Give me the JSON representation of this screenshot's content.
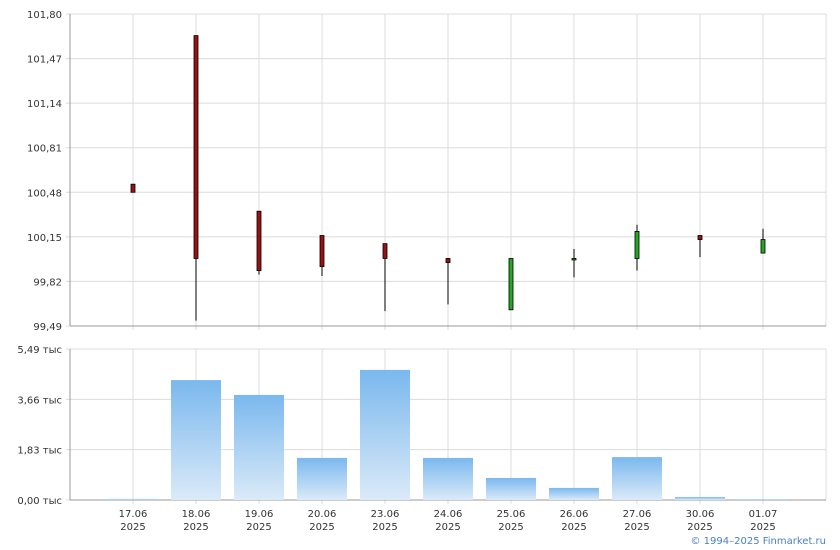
{
  "chart_data": [
    {
      "type": "candlestick",
      "open": [
        100.54,
        101.64,
        100.34,
        100.16,
        100.1,
        99.99,
        99.61,
        99.99,
        99.99,
        100.16,
        100.03
      ],
      "high": [
        100.54,
        101.64,
        100.34,
        100.16,
        100.1,
        99.99,
        99.99,
        100.06,
        100.24,
        100.16,
        100.21
      ],
      "low": [
        100.48,
        99.53,
        99.87,
        99.86,
        99.6,
        99.65,
        99.61,
        99.85,
        99.9,
        100.0,
        100.03
      ],
      "close": [
        100.48,
        99.99,
        99.9,
        99.93,
        99.99,
        99.96,
        99.99,
        99.99,
        100.19,
        100.13,
        100.13
      ],
      "up_color": "#22aa22",
      "down_color": "#9b1010",
      "ylim": [
        99.49,
        101.8
      ],
      "yticks": [
        {
          "value": 99.49,
          "label": "99,49"
        },
        {
          "value": 99.82,
          "label": "99,82"
        },
        {
          "value": 100.15,
          "label": "100,15"
        },
        {
          "value": 100.48,
          "label": "100,48"
        },
        {
          "value": 100.81,
          "label": "100,81"
        },
        {
          "value": 101.14,
          "label": "101,14"
        },
        {
          "value": 101.47,
          "label": "101,47"
        },
        {
          "value": 101.8,
          "label": "101,80"
        }
      ],
      "grid": true
    },
    {
      "type": "bar",
      "categories": [
        "17.06\n2025",
        "18.06\n2025",
        "19.06\n2025",
        "20.06\n2025",
        "23.06\n2025",
        "24.06\n2025",
        "25.06\n2025",
        "26.06\n2025",
        "27.06\n2025",
        "30.06\n2025",
        "01.07\n2025"
      ],
      "values": [
        40,
        4360,
        3820,
        1530,
        4730,
        1530,
        800,
        440,
        1560,
        110,
        30
      ],
      "color": "#7ab8ee",
      "ylim": [
        0,
        5490
      ],
      "yticks": [
        {
          "value": 0,
          "label": "0,00 тыс"
        },
        {
          "value": 1830,
          "label": "1,83 тыс"
        },
        {
          "value": 3660,
          "label": "3,66 тыс"
        },
        {
          "value": 5490,
          "label": "5,49 тыс"
        }
      ],
      "grid": true
    }
  ],
  "footer": "© 1994–2025 Finmarket.ru"
}
